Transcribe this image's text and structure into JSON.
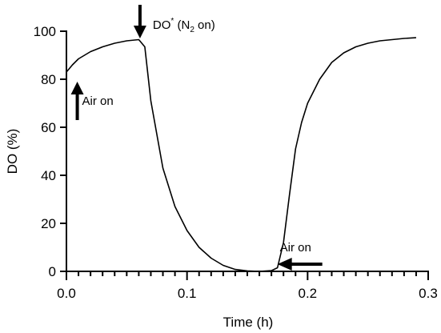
{
  "chart_data": {
    "type": "line",
    "xlabel": "Time (h)",
    "ylabel": "DO (%)",
    "xlim": [
      0,
      0.3
    ],
    "ylim": [
      0,
      100
    ],
    "x_ticks": [
      0.0,
      0.1,
      0.2,
      0.3
    ],
    "x_tick_labels": [
      "0.0",
      "0.1",
      "0.2",
      "0.3"
    ],
    "y_ticks": [
      0,
      20,
      40,
      60,
      80,
      100
    ],
    "y_tick_labels": [
      "0",
      "20",
      "40",
      "60",
      "80",
      "100"
    ],
    "x_minor_step": 0.01,
    "grid": false,
    "series": [
      {
        "color": "#000000",
        "x": [
          0.0,
          0.005,
          0.01,
          0.02,
          0.03,
          0.04,
          0.05,
          0.06,
          0.065,
          0.07,
          0.08,
          0.09,
          0.1,
          0.11,
          0.12,
          0.13,
          0.14,
          0.15,
          0.16,
          0.17,
          0.175,
          0.18,
          0.185,
          0.19,
          0.195,
          0.2,
          0.21,
          0.22,
          0.23,
          0.24,
          0.25,
          0.26,
          0.27,
          0.28,
          0.29
        ],
        "y": [
          83,
          86,
          88.5,
          91.5,
          93.5,
          95,
          96,
          96.5,
          93.5,
          71,
          43,
          27,
          17,
          10,
          5.5,
          2.5,
          0.8,
          0.2,
          0,
          0.3,
          1.5,
          12,
          32,
          51,
          62,
          70,
          80,
          87,
          91,
          93.5,
          95,
          96,
          96.5,
          97,
          97.3
        ]
      }
    ],
    "annotations": [
      {
        "id": "air-on-1",
        "text": "Air on",
        "x": 0.009,
        "y": 79,
        "arrow": "up"
      },
      {
        "id": "n2-on",
        "text": "DO",
        "sup": "*",
        "suffix_open": " (N",
        "sub": "2",
        "suffix_close": " on)",
        "x": 0.061,
        "y": 97,
        "arrow": "down"
      },
      {
        "id": "air-on-2",
        "text": "Air on",
        "x": 0.175,
        "y": 3,
        "arrow": "left"
      }
    ]
  }
}
